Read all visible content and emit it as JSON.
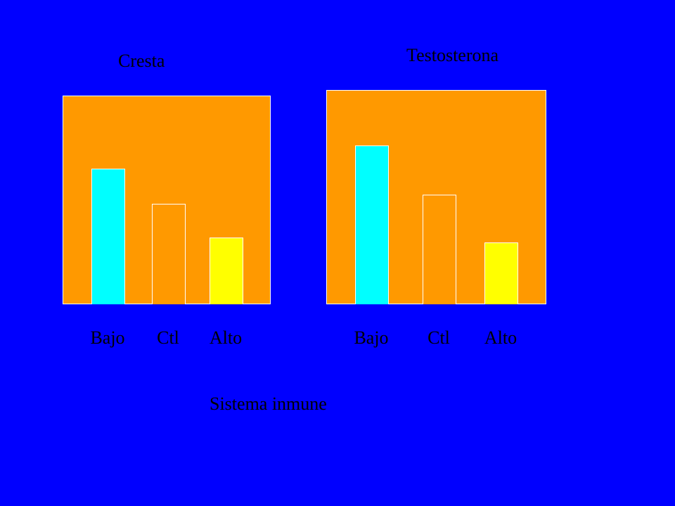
{
  "chart_data": [
    {
      "type": "bar",
      "title": "Cresta",
      "categories": [
        "Bajo",
        "Ctl",
        "Alto"
      ],
      "values": [
        65,
        48,
        32
      ],
      "ylim": [
        0,
        100
      ],
      "bar_colors": [
        "#00FFFF",
        "#FF9900",
        "#FFFF00"
      ],
      "grid": false
    },
    {
      "type": "bar",
      "title": "Testosterona",
      "categories": [
        "Bajo",
        "Ctl",
        "Alto"
      ],
      "values": [
        74,
        51,
        29
      ],
      "ylim": [
        0,
        100
      ],
      "bar_colors": [
        "#00FFFF",
        "#FF9900",
        "#FFFF00"
      ],
      "grid": false
    }
  ],
  "footer": {
    "label": "Sistema inmune"
  },
  "colors": {
    "background": "#0000FF",
    "plot_background": "#FF9900"
  }
}
